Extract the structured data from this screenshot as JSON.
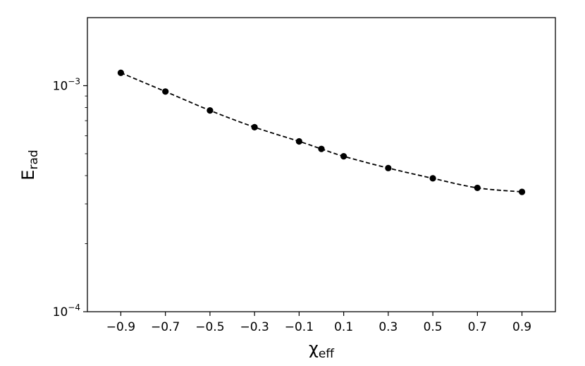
{
  "chart_data": {
    "type": "line",
    "title": "",
    "xlabel": "χ",
    "xlabel_sub": "eff",
    "ylabel": "E",
    "ylabel_sub": "rad",
    "x_scale": "linear",
    "y_scale": "log",
    "xlim": [
      -1.05,
      1.05
    ],
    "ylim": [
      0.0001,
      0.002
    ],
    "x_ticks": [
      {
        "value": -0.9,
        "label": "−0.9"
      },
      {
        "value": -0.7,
        "label": "−0.7"
      },
      {
        "value": -0.5,
        "label": "−0.5"
      },
      {
        "value": -0.3,
        "label": "−0.3"
      },
      {
        "value": -0.1,
        "label": "−0.1"
      },
      {
        "value": 0.1,
        "label": "0.1"
      },
      {
        "value": 0.3,
        "label": "0.3"
      },
      {
        "value": 0.5,
        "label": "0.5"
      },
      {
        "value": 0.7,
        "label": "0.7"
      },
      {
        "value": 0.9,
        "label": "0.9"
      }
    ],
    "y_ticks": [
      {
        "value": 0.001,
        "base": "10",
        "exp": "−3"
      },
      {
        "value": 0.0001,
        "base": "10",
        "exp": "−4"
      }
    ],
    "grid": false,
    "legend": "none",
    "series": [
      {
        "line_style": "dashed",
        "marker": "circle",
        "color": "#000000",
        "x": [
          -0.9,
          -0.7,
          -0.5,
          -0.3,
          -0.1,
          0.0,
          0.1,
          0.3,
          0.5,
          0.7,
          0.9
        ],
        "y": [
          0.00114,
          0.000942,
          0.000777,
          0.000655,
          0.000567,
          0.000525,
          0.000487,
          0.000432,
          0.000389,
          0.000353,
          0.000339
        ]
      }
    ]
  }
}
